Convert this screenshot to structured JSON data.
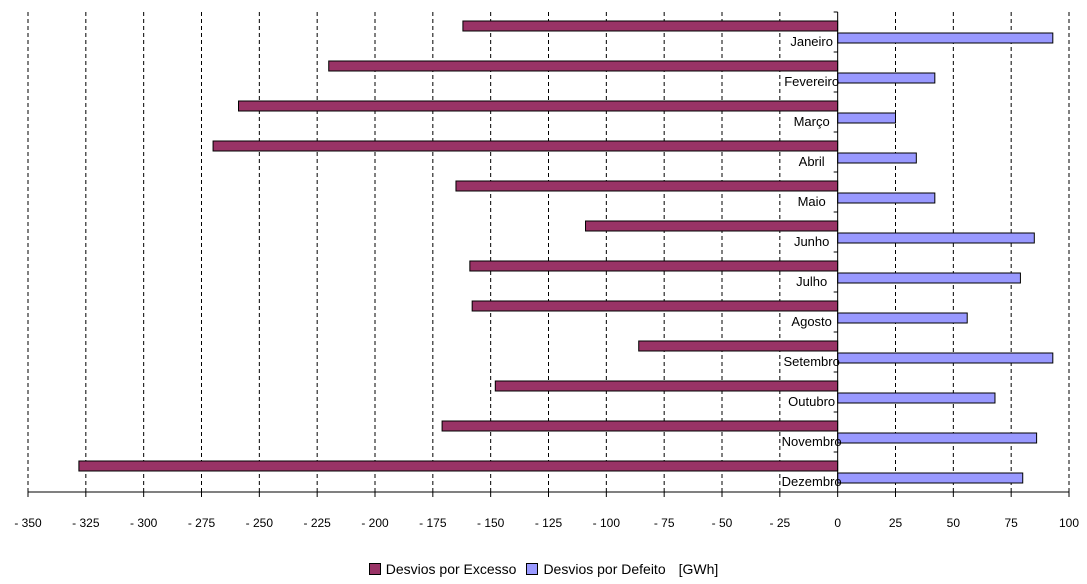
{
  "chart_data": {
    "type": "bar",
    "orientation": "horizontal",
    "categories": [
      "Janeiro",
      "Fevereiro",
      "Março",
      "Abril",
      "Maio",
      "Junho",
      "Julho",
      "Agosto",
      "Setembro",
      "Outubro",
      "Novembro",
      "Dezembro"
    ],
    "series": [
      {
        "name": "Desvios por Excesso",
        "color": "#993366",
        "values": [
          -162,
          -220,
          -259,
          -270,
          -165,
          -109,
          -159,
          -158,
          -86,
          -148,
          -171,
          -328
        ]
      },
      {
        "name": "Desvios por Defeito",
        "color": "#9999ff",
        "values": [
          93,
          42,
          25,
          34,
          42,
          85,
          79,
          56,
          93,
          68,
          86,
          80
        ]
      }
    ],
    "unit_label": "[GWh]",
    "xlim": [
      -350,
      100
    ],
    "xticks": [
      -350,
      -325,
      -300,
      -275,
      -250,
      -225,
      -200,
      -175,
      -150,
      -125,
      -100,
      -75,
      -50,
      -25,
      0,
      25,
      50,
      75,
      100
    ],
    "xtick_labels": [
      "- 350",
      "- 325",
      "- 300",
      "- 275",
      "- 250",
      "- 225",
      "- 200",
      "- 175",
      "- 150",
      "- 125",
      "- 100",
      "- 75",
      "- 50",
      "- 25",
      "0",
      "25",
      "50",
      "75",
      "100"
    ],
    "grid": "vertical-dashed",
    "legend": "bottom-center"
  }
}
